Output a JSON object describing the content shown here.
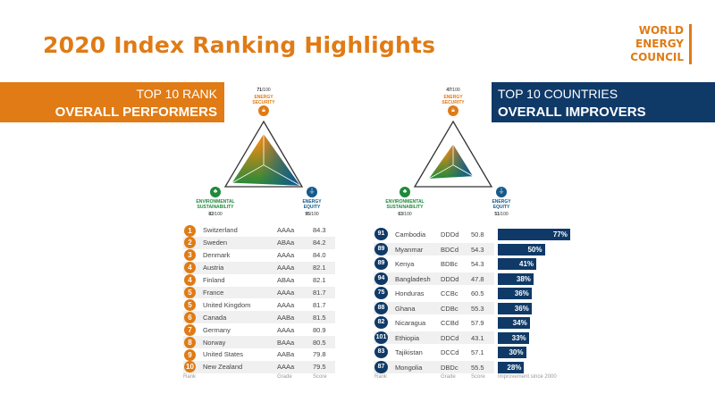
{
  "title": "2020 Index Ranking Highlights",
  "logo": [
    "WORLD",
    "ENERGY",
    "COUNCIL"
  ],
  "colors": {
    "orange": "#e07b15",
    "navy": "#0f3a68",
    "green": "#1f8a3b",
    "blue": "#155a8a"
  },
  "left_banner": {
    "line1": "TOP 10 RANK",
    "line2": "OVERALL PERFORMERS"
  },
  "right_banner": {
    "line1": "TOP 10 COUNTRIES",
    "line2": "OVERALL IMPROVERS"
  },
  "axes": {
    "security": "ENERGY SECURITY",
    "environment": "ENVIRONMENTAL SUSTAINABILITY",
    "equity": "ENERGY EQUITY",
    "suffix": "/100"
  },
  "left_radar": {
    "security": 71,
    "environment": 82,
    "equity": 95
  },
  "right_radar": {
    "security": 47,
    "environment": 63,
    "equity": 51
  },
  "performers": {
    "headers": {
      "rank": "Rank",
      "grade": "Grade",
      "score": "Score"
    },
    "rows": [
      {
        "rank": "1",
        "country": "Switzerland",
        "grade": "AAAa",
        "score": "84.3"
      },
      {
        "rank": "2",
        "country": "Sweden",
        "grade": "ABAa",
        "score": "84.2"
      },
      {
        "rank": "3",
        "country": "Denmark",
        "grade": "AAAa",
        "score": "84.0"
      },
      {
        "rank": "4",
        "country": "Austria",
        "grade": "AAAa",
        "score": "82.1"
      },
      {
        "rank": "4",
        "country": "Finland",
        "grade": "ABAa",
        "score": "82.1"
      },
      {
        "rank": "5",
        "country": "France",
        "grade": "AAAa",
        "score": "81.7"
      },
      {
        "rank": "5",
        "country": "United Kingdom",
        "grade": "AAAa",
        "score": "81.7"
      },
      {
        "rank": "6",
        "country": "Canada",
        "grade": "AABa",
        "score": "81.5"
      },
      {
        "rank": "7",
        "country": "Germany",
        "grade": "AAAa",
        "score": "80.9"
      },
      {
        "rank": "8",
        "country": "Norway",
        "grade": "BAAa",
        "score": "80.5"
      },
      {
        "rank": "9",
        "country": "United States",
        "grade": "AABa",
        "score": "79.8"
      },
      {
        "rank": "10",
        "country": "New Zealand",
        "grade": "AAAa",
        "score": "79.5"
      }
    ]
  },
  "improvers": {
    "headers": {
      "rank": "Rank",
      "grade": "Grade",
      "score": "Score",
      "improvement": "Improvement since 2000"
    },
    "rows": [
      {
        "rank": "91",
        "country": "Cambodia",
        "grade": "DDDd",
        "score": "50.8",
        "improvement": 77
      },
      {
        "rank": "89",
        "country": "Myanmar",
        "grade": "BDCd",
        "score": "54.3",
        "improvement": 50
      },
      {
        "rank": "89",
        "country": "Kenya",
        "grade": "BDBc",
        "score": "54.3",
        "improvement": 41
      },
      {
        "rank": "94",
        "country": "Bangladesh",
        "grade": "DDDd",
        "score": "47.8",
        "improvement": 38
      },
      {
        "rank": "75",
        "country": "Honduras",
        "grade": "CCBc",
        "score": "60.5",
        "improvement": 36
      },
      {
        "rank": "88",
        "country": "Ghana",
        "grade": "CDBc",
        "score": "55.3",
        "improvement": 36
      },
      {
        "rank": "82",
        "country": "Nicaragua",
        "grade": "CCBd",
        "score": "57.9",
        "improvement": 34
      },
      {
        "rank": "101",
        "country": "Ethiopia",
        "grade": "DDCd",
        "score": "43.1",
        "improvement": 33
      },
      {
        "rank": "83",
        "country": "Tajikistan",
        "grade": "DCCd",
        "score": "57.1",
        "improvement": 30
      },
      {
        "rank": "87",
        "country": "Mongolia",
        "grade": "DBDc",
        "score": "55.5",
        "improvement": 28
      }
    ]
  }
}
